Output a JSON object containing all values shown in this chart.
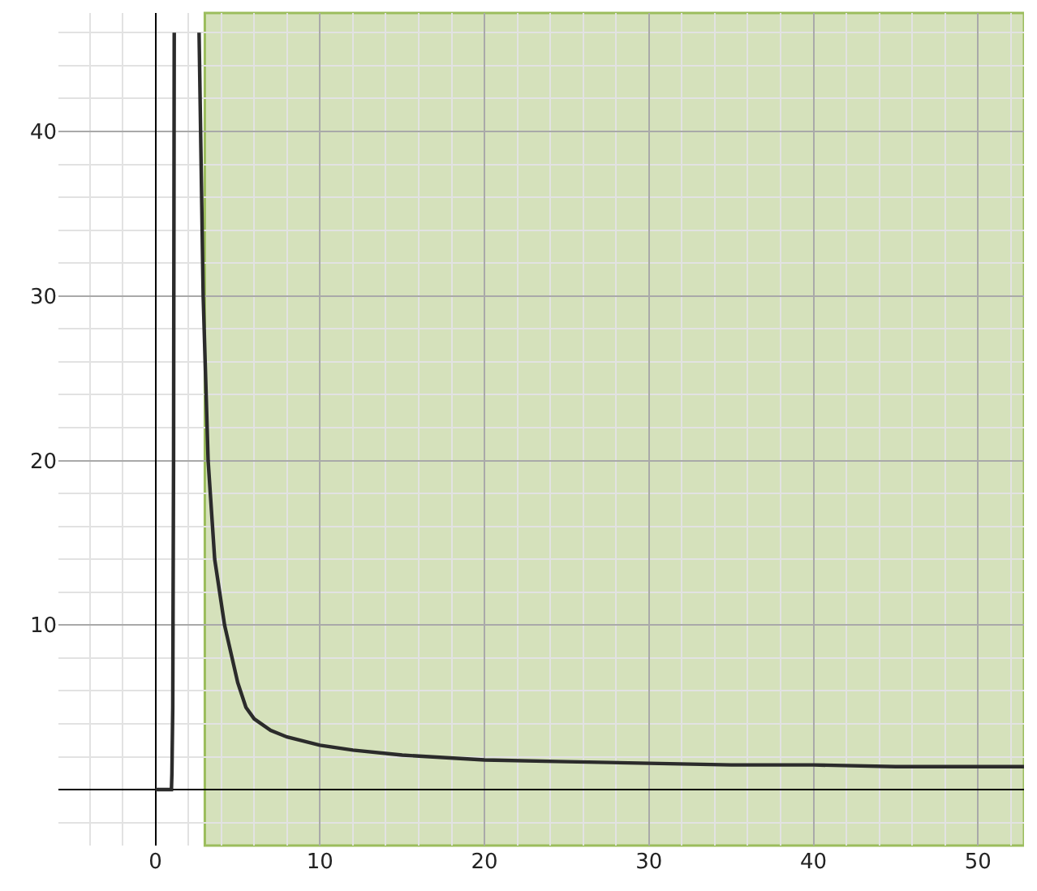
{
  "chart_data": {
    "type": "line",
    "series": [
      {
        "color": "#2b2b2b",
        "x": [
          0,
          0.97,
          1.0,
          1.05,
          1.1,
          1.14,
          null,
          2.65,
          2.9,
          3.2,
          3.6,
          4.2,
          5,
          5.5,
          6,
          7,
          8,
          10,
          12,
          15,
          20,
          25,
          30,
          35,
          40,
          45,
          52.8
        ],
        "values": [
          0,
          0,
          1,
          5,
          20,
          46,
          null,
          46,
          30,
          20,
          14,
          10,
          6.5,
          5,
          4.3,
          3.6,
          3.2,
          2.7,
          2.4,
          2.1,
          1.8,
          1.7,
          1.6,
          1.5,
          1.5,
          1.4,
          1.4
        ]
      }
    ],
    "xlim": [
      -5.9,
      52.8
    ],
    "ylim": [
      -3.4,
      47.2
    ],
    "xticks": [
      0,
      10,
      20,
      30,
      40,
      50
    ],
    "yticks": [
      10,
      20,
      30,
      40
    ],
    "grid": true,
    "marker": "none",
    "line_style": "solid",
    "bands": [
      {
        "axis": "x",
        "from": 3,
        "to": 52.8,
        "color": "#d5e1bb"
      }
    ]
  }
}
